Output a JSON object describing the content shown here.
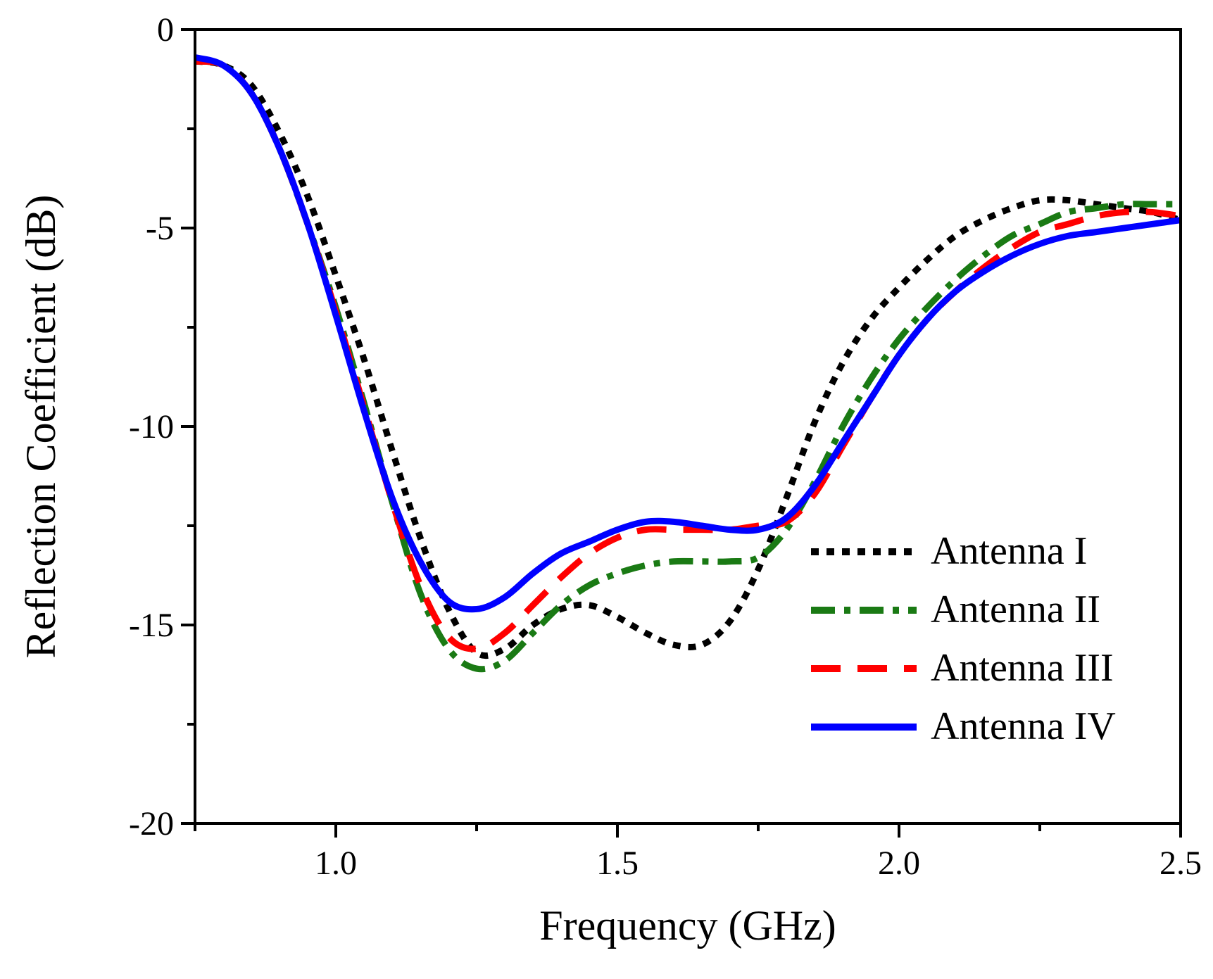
{
  "chart_data": {
    "type": "line",
    "title": "",
    "xlabel": "Frequency (GHz)",
    "ylabel": "Reflection Coefficient (dB)",
    "xlim": [
      0.75,
      2.5
    ],
    "ylim": [
      -20,
      0
    ],
    "xticks": [
      1.0,
      1.5,
      2.0,
      2.5
    ],
    "xtick_labels": [
      "1.0",
      "1.5",
      "2.0",
      "2.5"
    ],
    "yticks": [
      0,
      -5,
      -10,
      -15,
      -20
    ],
    "ytick_labels": [
      "0",
      "-5",
      "-10",
      "-15",
      "-20"
    ],
    "grid": false,
    "legend": "center-right",
    "series": [
      {
        "name": "Antenna I",
        "color": "#000000",
        "style": "dotted",
        "x": [
          0.75,
          0.8,
          0.85,
          0.9,
          0.95,
          1.0,
          1.05,
          1.1,
          1.15,
          1.2,
          1.25,
          1.3,
          1.35,
          1.4,
          1.45,
          1.5,
          1.55,
          1.6,
          1.65,
          1.7,
          1.75,
          1.8,
          1.85,
          1.9,
          1.95,
          2.0,
          2.05,
          2.1,
          2.15,
          2.2,
          2.25,
          2.3,
          2.35,
          2.4,
          2.45,
          2.5
        ],
        "values": [
          -0.8,
          -0.9,
          -1.4,
          -2.6,
          -4.2,
          -6.2,
          -8.3,
          -10.6,
          -12.8,
          -14.6,
          -15.7,
          -15.6,
          -15.0,
          -14.6,
          -14.5,
          -14.8,
          -15.2,
          -15.5,
          -15.5,
          -14.9,
          -13.6,
          -11.8,
          -9.9,
          -8.4,
          -7.3,
          -6.5,
          -5.8,
          -5.2,
          -4.8,
          -4.5,
          -4.3,
          -4.3,
          -4.4,
          -4.5,
          -4.6,
          -4.8
        ]
      },
      {
        "name": "Antenna II",
        "color": "#1a7a14",
        "style": "dashdot",
        "x": [
          0.75,
          0.8,
          0.85,
          0.9,
          0.95,
          1.0,
          1.05,
          1.1,
          1.15,
          1.2,
          1.25,
          1.3,
          1.35,
          1.4,
          1.45,
          1.5,
          1.55,
          1.6,
          1.65,
          1.7,
          1.75,
          1.8,
          1.85,
          1.9,
          1.95,
          2.0,
          2.05,
          2.1,
          2.15,
          2.2,
          2.25,
          2.3,
          2.35,
          2.4,
          2.45,
          2.5
        ],
        "values": [
          -0.8,
          -0.9,
          -1.6,
          -3.0,
          -4.9,
          -7.0,
          -9.4,
          -11.9,
          -14.2,
          -15.6,
          -16.1,
          -15.9,
          -15.2,
          -14.5,
          -14.0,
          -13.7,
          -13.5,
          -13.4,
          -13.4,
          -13.4,
          -13.3,
          -12.6,
          -11.4,
          -10.0,
          -8.8,
          -7.8,
          -7.0,
          -6.3,
          -5.7,
          -5.2,
          -4.9,
          -4.6,
          -4.5,
          -4.4,
          -4.4,
          -4.4
        ]
      },
      {
        "name": "Antenna III",
        "color": "#ff0000",
        "style": "dashed",
        "x": [
          0.75,
          0.8,
          0.85,
          0.9,
          0.95,
          1.0,
          1.05,
          1.1,
          1.15,
          1.2,
          1.25,
          1.3,
          1.35,
          1.4,
          1.45,
          1.5,
          1.55,
          1.6,
          1.65,
          1.7,
          1.75,
          1.8,
          1.85,
          1.9,
          1.95,
          2.0,
          2.05,
          2.1,
          2.15,
          2.2,
          2.25,
          2.3,
          2.35,
          2.4,
          2.45,
          2.5
        ],
        "values": [
          -0.8,
          -0.9,
          -1.6,
          -3.0,
          -4.9,
          -7.1,
          -9.5,
          -11.9,
          -14.0,
          -15.3,
          -15.6,
          -15.2,
          -14.5,
          -13.8,
          -13.2,
          -12.8,
          -12.6,
          -12.6,
          -12.6,
          -12.6,
          -12.5,
          -12.4,
          -11.7,
          -10.5,
          -9.3,
          -8.2,
          -7.3,
          -6.6,
          -6.0,
          -5.5,
          -5.1,
          -4.9,
          -4.7,
          -4.6,
          -4.6,
          -4.7
        ]
      },
      {
        "name": "Antenna IV",
        "color": "#0000ff",
        "style": "solid",
        "x": [
          0.75,
          0.8,
          0.85,
          0.9,
          0.95,
          1.0,
          1.05,
          1.1,
          1.15,
          1.2,
          1.25,
          1.3,
          1.35,
          1.4,
          1.45,
          1.5,
          1.55,
          1.6,
          1.65,
          1.7,
          1.75,
          1.8,
          1.85,
          1.9,
          1.95,
          2.0,
          2.05,
          2.1,
          2.15,
          2.2,
          2.25,
          2.3,
          2.35,
          2.4,
          2.45,
          2.5
        ],
        "values": [
          -0.7,
          -0.9,
          -1.6,
          -3.0,
          -4.9,
          -7.2,
          -9.6,
          -11.8,
          -13.4,
          -14.4,
          -14.6,
          -14.3,
          -13.7,
          -13.2,
          -12.9,
          -12.6,
          -12.4,
          -12.4,
          -12.5,
          -12.6,
          -12.6,
          -12.3,
          -11.5,
          -10.4,
          -9.3,
          -8.2,
          -7.3,
          -6.6,
          -6.1,
          -5.7,
          -5.4,
          -5.2,
          -5.1,
          -5.0,
          -4.9,
          -4.8
        ]
      }
    ]
  }
}
